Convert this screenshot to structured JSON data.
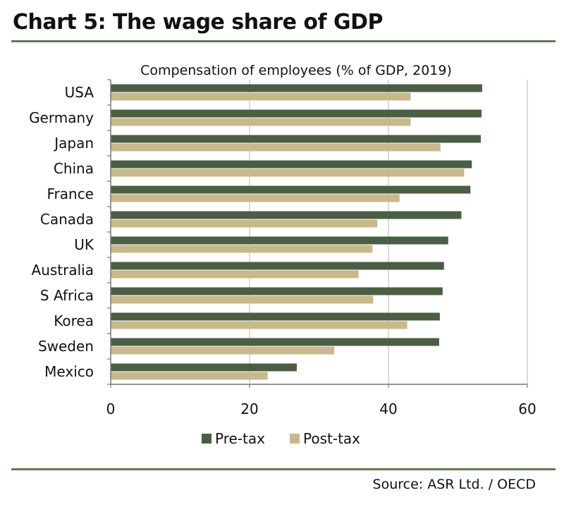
{
  "page_title": "Chart 5: The wage share of GDP",
  "source": "Source: ASR Ltd. / OECD",
  "chart_data": {
    "type": "bar",
    "orientation": "horizontal",
    "title": "Compensation of employees (% of GDP, 2019)",
    "categories": [
      "USA",
      "Germany",
      "Japan",
      "China",
      "France",
      "Canada",
      "UK",
      "Australia",
      "S Africa",
      "Korea",
      "Sweden",
      "Mexico"
    ],
    "series": [
      {
        "name": "Pre-tax",
        "color": "#4a5e43",
        "values": [
          53.5,
          53.4,
          53.3,
          52.0,
          51.8,
          50.5,
          48.6,
          48.0,
          47.8,
          47.4,
          47.3,
          26.8
        ]
      },
      {
        "name": "Post-tax",
        "color": "#c8b98a",
        "values": [
          43.2,
          43.2,
          47.5,
          50.9,
          41.6,
          38.4,
          37.7,
          35.7,
          37.8,
          42.7,
          32.2,
          22.6
        ]
      }
    ],
    "xlim": [
      0,
      60
    ],
    "xticks": [
      "0",
      "20",
      "40",
      "60"
    ],
    "grid": true,
    "legend_position": "bottom"
  }
}
